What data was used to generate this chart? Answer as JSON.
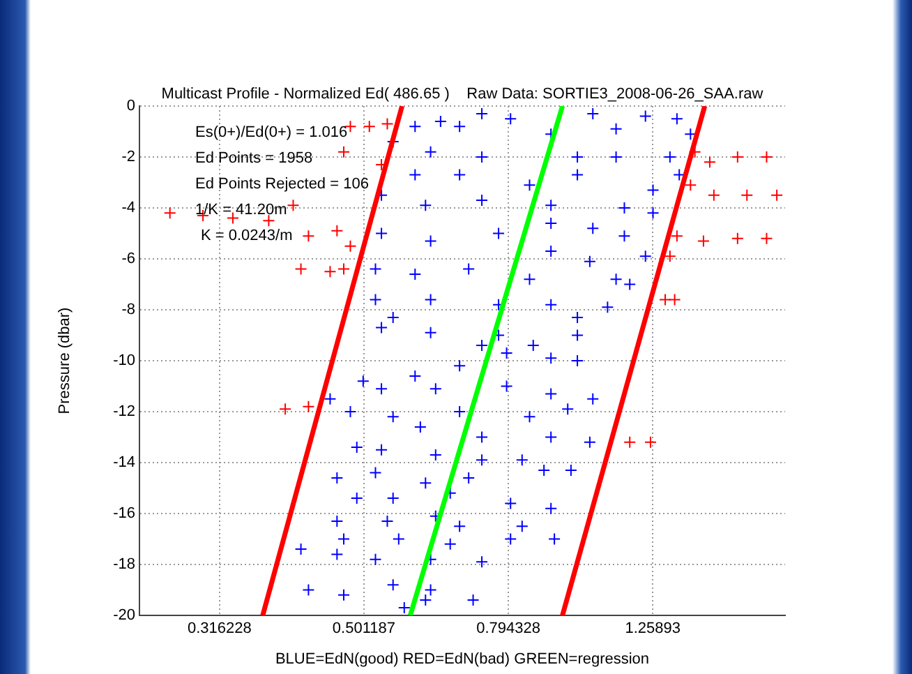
{
  "chart_data": {
    "type": "scatter",
    "title": "Multicast Profile - Normalized Ed( 486.65 )    Raw Data: SORTIE3_2008-06-26_SAA.raw",
    "xlabel": "BLUE=EdN(good) RED=EdN(bad) GREEN=regression",
    "ylabel": "Pressure (dbar)",
    "annotations": [
      "Es(0+)/Ed(0+) = 1.016",
      "Ed Points = 1958",
      "Ed Points Rejected = 106",
      "1/K = 41.20m",
      "K = 0.0243/m"
    ],
    "log": "x",
    "grid": true,
    "legend": false,
    "xlim": [
      0.245,
      1.92
    ],
    "xticks": [
      0.316228,
      0.501187,
      0.794328,
      1.25893
    ],
    "ylim": [
      -20,
      0
    ],
    "yticks": [
      0,
      -2,
      -4,
      -6,
      -8,
      -10,
      -12,
      -14,
      -16,
      -18,
      -20
    ],
    "series": [
      {
        "color": "#0000ff",
        "marker": "cross",
        "x": [
          0.59,
          0.64,
          0.68,
          0.73,
          0.8,
          1.04,
          1.23,
          1.36,
          1.42,
          1.12,
          0.91,
          0.55,
          0.62,
          0.73,
          0.99,
          1.12,
          1.33,
          1.37,
          1.26,
          0.99,
          0.85,
          0.68,
          0.59,
          0.53,
          0.61,
          0.73,
          0.91,
          1.15,
          1.26,
          0.53,
          0.62,
          0.77,
          0.91,
          1.04,
          1.15,
          1.23,
          0.91,
          1.03,
          0.52,
          0.59,
          0.7,
          0.85,
          1.12,
          1.17,
          0.52,
          0.62,
          0.77,
          0.91,
          1.09,
          0.99,
          0.55,
          0.53,
          0.62,
          0.77,
          0.86,
          0.99,
          0.73,
          0.79,
          0.91,
          0.99,
          0.68,
          0.59,
          0.5,
          0.53,
          0.63,
          0.79,
          0.91,
          1.04,
          0.45,
          0.48,
          0.55,
          0.68,
          0.85,
          0.96,
          0.6,
          0.73,
          0.91,
          1.03,
          0.49,
          0.53,
          0.63,
          0.73,
          0.83,
          0.97,
          0.46,
          0.52,
          0.61,
          0.7,
          0.89,
          0.49,
          0.55,
          0.66,
          0.8,
          0.91,
          0.46,
          0.54,
          0.63,
          0.68,
          0.83,
          0.47,
          0.56,
          0.66,
          0.8,
          0.92,
          0.41,
          0.46,
          0.52,
          0.62,
          0.73,
          0.42,
          0.47,
          0.55,
          0.62,
          0.71,
          0.57,
          0.61
        ],
        "values": [
          -0.8,
          -0.6,
          -0.8,
          -0.3,
          -0.5,
          -0.3,
          -0.4,
          -0.5,
          -1.1,
          -0.9,
          -1.1,
          -1.4,
          -1.8,
          -2.0,
          -2.0,
          -2.0,
          -2.0,
          -2.7,
          -3.3,
          -2.7,
          -3.1,
          -2.7,
          -2.7,
          -3.5,
          -3.9,
          -3.7,
          -3.9,
          -4.0,
          -4.2,
          -5.0,
          -5.3,
          -5.0,
          -4.6,
          -4.8,
          -5.1,
          -5.9,
          -5.7,
          -6.1,
          -6.4,
          -6.6,
          -6.4,
          -6.8,
          -6.8,
          -7.0,
          -7.6,
          -7.6,
          -7.8,
          -7.8,
          -7.9,
          -8.3,
          -8.3,
          -8.7,
          -8.9,
          -9.0,
          -9.4,
          -9.0,
          -9.4,
          -9.7,
          -9.9,
          -10.0,
          -10.2,
          -10.6,
          -10.8,
          -11.1,
          -11.1,
          -11.0,
          -11.3,
          -11.5,
          -11.5,
          -12.0,
          -12.2,
          -12.0,
          -12.2,
          -11.9,
          -12.6,
          -13.0,
          -13.0,
          -13.2,
          -13.4,
          -13.5,
          -13.7,
          -13.9,
          -13.9,
          -14.3,
          -14.6,
          -14.4,
          -14.8,
          -14.6,
          -14.3,
          -15.4,
          -15.4,
          -15.2,
          -15.6,
          -15.8,
          -16.3,
          -16.3,
          -16.1,
          -16.5,
          -16.5,
          -17.0,
          -17.0,
          -17.2,
          -17.0,
          -17.0,
          -17.4,
          -17.6,
          -17.8,
          -17.8,
          -17.9,
          -19.0,
          -19.2,
          -18.8,
          -19.0,
          -19.4,
          -19.7,
          -19.4
        ]
      },
      {
        "color": "#ff0000",
        "marker": "cross",
        "x": [
          0.27,
          0.3,
          0.33,
          0.37,
          0.4,
          0.48,
          0.51,
          0.54,
          0.47,
          0.53,
          0.42,
          0.46,
          0.48,
          0.41,
          0.45,
          0.47,
          1.44,
          1.51,
          1.65,
          1.81,
          1.42,
          1.53,
          1.7,
          1.87,
          1.36,
          1.48,
          1.65,
          1.81,
          1.33,
          1.31,
          1.35,
          0.39,
          0.42,
          1.17,
          1.25
        ],
        "values": [
          -4.2,
          -4.3,
          -4.4,
          -4.5,
          -3.9,
          -0.8,
          -0.8,
          -0.7,
          -1.8,
          -2.3,
          -5.1,
          -4.9,
          -5.5,
          -6.4,
          -6.5,
          -6.4,
          -1.8,
          -2.2,
          -2.0,
          -2.0,
          -3.1,
          -3.5,
          -3.5,
          -3.5,
          -5.1,
          -5.3,
          -5.2,
          -5.2,
          -5.9,
          -7.6,
          -7.6,
          -11.9,
          -11.8,
          -13.2,
          -13.2
        ]
      },
      {
        "type": "line",
        "color": "#ff0000",
        "marker": "none",
        "x": [
          0.566,
          0.363
        ],
        "values": [
          0,
          -20
        ]
      },
      {
        "type": "line",
        "color": "#ff0000",
        "marker": "none",
        "x": [
          1.486,
          0.944
        ],
        "values": [
          0,
          -20
        ]
      },
      {
        "type": "line",
        "color": "#00ff00",
        "marker": "none",
        "x": [
          0.944,
          0.581
        ],
        "values": [
          0,
          -20
        ]
      }
    ]
  }
}
